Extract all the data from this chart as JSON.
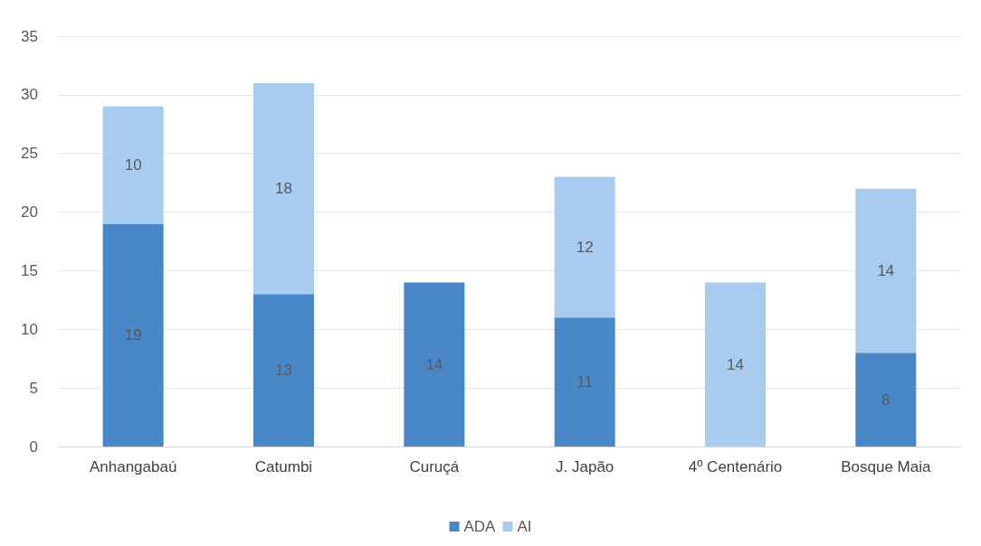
{
  "chart_data": {
    "type": "bar",
    "stacked": true,
    "categories": [
      "Anhangabaú",
      "Catumbi",
      "Curuçá",
      "J. Japão",
      "4º Centenário",
      "Bosque Maia"
    ],
    "series": [
      {
        "name": "ADA",
        "color": "#4a87c9",
        "values": [
          19,
          13,
          14,
          11,
          null,
          8
        ]
      },
      {
        "name": "AI",
        "color": "#a8cbf0",
        "values": [
          10,
          18,
          null,
          12,
          14,
          14
        ]
      }
    ],
    "ylim": [
      0,
      35
    ],
    "yticks": [
      0,
      5,
      10,
      15,
      20,
      25,
      30,
      35
    ],
    "grid": "y",
    "legend": "bottom",
    "data_labels": true
  }
}
